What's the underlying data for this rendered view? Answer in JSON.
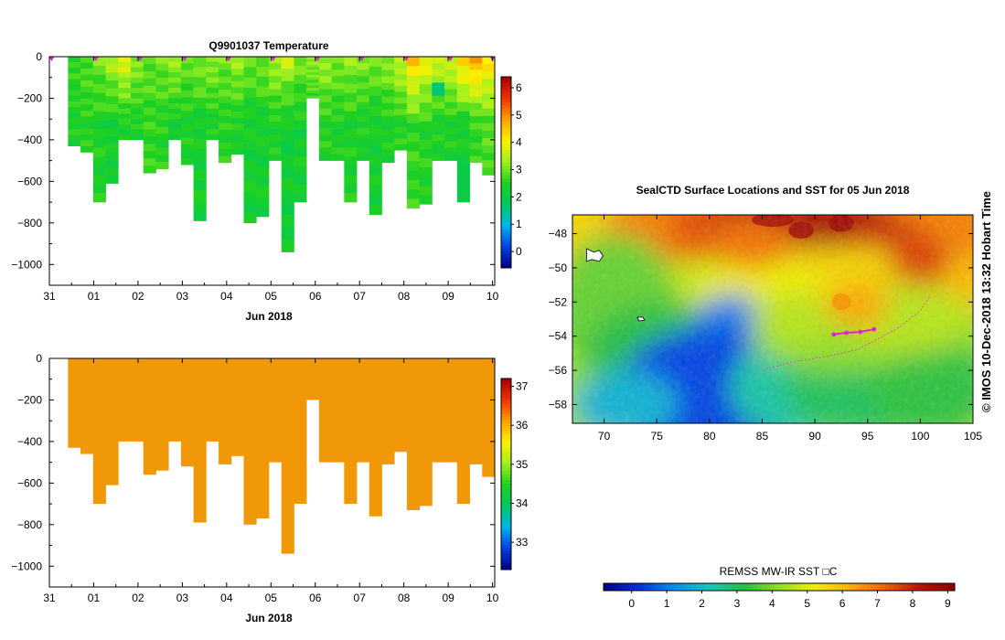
{
  "page": {
    "colors": {
      "background": "#ffffff",
      "axis": "#000000",
      "salinity_fill": "#f09808",
      "track_marker": "#dd22dd"
    },
    "temperature_colorscale": [
      "#000080",
      "#0040e0",
      "#00b4f0",
      "#00c85a",
      "#20d020",
      "#a0f020",
      "#fff000",
      "#ffa000",
      "#f03000",
      "#a00000"
    ],
    "sst_colorscale": [
      "#00008a",
      "#0030e0",
      "#0090f0",
      "#10c8c0",
      "#20c040",
      "#90e020",
      "#f0f000",
      "#ffb000",
      "#f06000",
      "#c01000",
      "#8a0000"
    ]
  },
  "chart_data": [
    {
      "id": "temperature_section",
      "type": "heatmap",
      "title": "Q9901037  Temperature",
      "xlabel": "Jun 2018",
      "ylabel": "",
      "x_tick_labels": [
        "31",
        "01",
        "02",
        "03",
        "04",
        "05",
        "06",
        "07",
        "08",
        "09",
        "10"
      ],
      "x_tick_values": [
        0,
        1,
        2,
        3,
        4,
        5,
        6,
        7,
        8,
        9,
        10
      ],
      "xlim": [
        0,
        10.05
      ],
      "y_tick_values": [
        0,
        -200,
        -400,
        -600,
        -800,
        -1000
      ],
      "ylim": [
        -1100,
        0
      ],
      "profile_max_depth_m": [
        430,
        460,
        700,
        610,
        400,
        400,
        560,
        540,
        400,
        520,
        790,
        400,
        510,
        470,
        800,
        770,
        500,
        940,
        700,
        200,
        500,
        500,
        700,
        500,
        760,
        510,
        450,
        730,
        710,
        500,
        500,
        700,
        510,
        570
      ],
      "profile_surface_temp_C": [
        2.6,
        2.8,
        3.0,
        3.4,
        3.8,
        3.2,
        2.9,
        3.0,
        3.3,
        2.9,
        3.1,
        3.2,
        3.0,
        3.3,
        2.9,
        3.0,
        3.4,
        3.5,
        3.0,
        3.2,
        3.3,
        3.1,
        3.2,
        3.1,
        3.0,
        3.2,
        3.6,
        4.4,
        3.9,
        3.6,
        3.7,
        4.4,
        4.7,
        4.2
      ],
      "profile_deep_temp_C": [
        2.4,
        2.5,
        2.4,
        2.3,
        2.4,
        2.4,
        2.6,
        2.5,
        2.3,
        2.4,
        2.3,
        2.4,
        2.5,
        2.4,
        2.3,
        2.3,
        2.4,
        2.2,
        2.3,
        2.4,
        2.5,
        2.4,
        2.4,
        2.4,
        2.3,
        2.4,
        2.5,
        2.6,
        2.5,
        2.4,
        2.4,
        2.3,
        2.6,
        2.8
      ],
      "surfacing_marker_days": [
        0.05,
        1.05,
        2.05,
        3.05,
        4.05,
        5.05,
        6.05,
        7.05,
        8.05,
        9.05,
        10.0
      ],
      "colorbar": {
        "min": -0.6,
        "max": 6.4,
        "tick_values": [
          0,
          1,
          2,
          3,
          4,
          5,
          6
        ],
        "tick_labels": [
          "0",
          "1",
          "2",
          "3",
          "4",
          "5",
          "6"
        ]
      }
    },
    {
      "id": "salinity_section",
      "type": "heatmap",
      "title": "",
      "xlabel": "Jun 2018",
      "ylabel": "",
      "x_tick_labels": [
        "31",
        "01",
        "02",
        "03",
        "04",
        "05",
        "06",
        "07",
        "08",
        "09",
        "10"
      ],
      "x_tick_values": [
        0,
        1,
        2,
        3,
        4,
        5,
        6,
        7,
        8,
        9,
        10
      ],
      "xlim": [
        0,
        10.05
      ],
      "y_tick_values": [
        0,
        -200,
        -400,
        -600,
        -800,
        -1000
      ],
      "ylim": [
        -1100,
        0
      ],
      "profile_max_depth_m": [
        430,
        460,
        700,
        610,
        400,
        400,
        560,
        540,
        400,
        520,
        790,
        400,
        510,
        470,
        800,
        770,
        500,
        940,
        700,
        200,
        500,
        500,
        700,
        500,
        760,
        510,
        450,
        730,
        710,
        500,
        500,
        700,
        510,
        570
      ],
      "uniform_value": 35.8,
      "colorbar": {
        "min": 32.3,
        "max": 37.2,
        "tick_values": [
          33,
          34,
          35,
          36,
          37
        ],
        "tick_labels": [
          "33",
          "34",
          "35",
          "36",
          "37"
        ]
      }
    },
    {
      "id": "sst_map",
      "type": "heatmap",
      "title": "SealCTD Surface Locations and SST for 05 Jun 2018",
      "x_tick_labels": [
        "70",
        "75",
        "80",
        "85",
        "90",
        "95",
        "100",
        "105"
      ],
      "x_tick_values": [
        70,
        75,
        80,
        85,
        90,
        95,
        100,
        105
      ],
      "y_tick_labels": [
        "-48",
        "-50",
        "-52",
        "-54",
        "-56",
        "-58"
      ],
      "y_tick_values": [
        -48,
        -50,
        -52,
        -54,
        -56,
        -58
      ],
      "xlim": [
        67,
        105
      ],
      "ylim": [
        -59.1,
        -46.9
      ],
      "features": [
        {
          "name": "island-heard",
          "lon": 73.5,
          "lat": -53.0
        },
        {
          "name": "island-kerguelen",
          "lon": 69.2,
          "lat": -49.3
        }
      ],
      "seal_track": [
        [
          91.8,
          -53.9
        ],
        [
          93.0,
          -53.8
        ],
        [
          94.3,
          -53.75
        ],
        [
          95.6,
          -53.6
        ]
      ],
      "side_label": "© IMOS 10-Dec-2018 13:32 Hobart Time",
      "colorbar": {
        "label": "REMSS MW-IR SST □C",
        "min": -0.8,
        "max": 9.2,
        "tick_values": [
          0,
          1,
          2,
          3,
          4,
          5,
          6,
          7,
          8,
          9
        ],
        "tick_labels": [
          "0",
          "1",
          "2",
          "3",
          "4",
          "5",
          "6",
          "7",
          "8",
          "9"
        ]
      }
    }
  ]
}
